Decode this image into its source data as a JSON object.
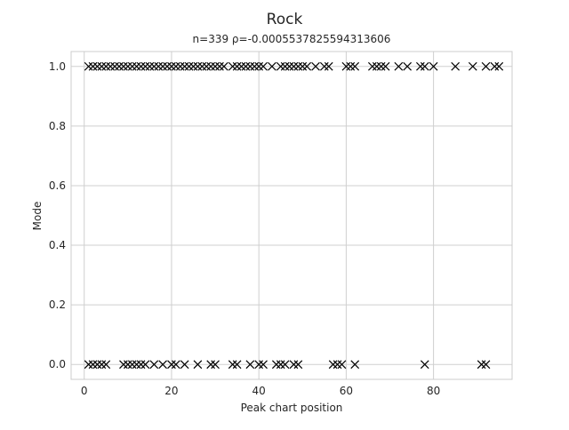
{
  "chart_data": {
    "type": "scatter",
    "title": "Rock",
    "subtitle": "n=339 ρ=-0.0005537825594313606",
    "xlabel": "Peak chart position",
    "ylabel": "Mode",
    "xlim": [
      -3,
      98
    ],
    "ylim": [
      -0.05,
      1.05
    ],
    "xticks": [
      0,
      20,
      40,
      60,
      80
    ],
    "yticks": [
      0.0,
      0.2,
      0.4,
      0.6,
      0.8,
      1.0
    ],
    "grid": true,
    "marker": "x",
    "colors": {
      "marker": "#000000",
      "grid": "#cfcfcf",
      "text": "#262626"
    },
    "series": [
      {
        "points": [
          {
            "x": 1,
            "y": 1.0
          },
          {
            "x": 2,
            "y": 1.0
          },
          {
            "x": 3,
            "y": 1.0
          },
          {
            "x": 4,
            "y": 1.0
          },
          {
            "x": 5,
            "y": 1.0
          },
          {
            "x": 6,
            "y": 1.0
          },
          {
            "x": 7,
            "y": 1.0
          },
          {
            "x": 8,
            "y": 1.0
          },
          {
            "x": 9,
            "y": 1.0
          },
          {
            "x": 10,
            "y": 1.0
          },
          {
            "x": 11,
            "y": 1.0
          },
          {
            "x": 12,
            "y": 1.0
          },
          {
            "x": 13,
            "y": 1.0
          },
          {
            "x": 14,
            "y": 1.0
          },
          {
            "x": 15,
            "y": 1.0
          },
          {
            "x": 16,
            "y": 1.0
          },
          {
            "x": 17,
            "y": 1.0
          },
          {
            "x": 18,
            "y": 1.0
          },
          {
            "x": 19,
            "y": 1.0
          },
          {
            "x": 20,
            "y": 1.0
          },
          {
            "x": 21,
            "y": 1.0
          },
          {
            "x": 22,
            "y": 1.0
          },
          {
            "x": 23,
            "y": 1.0
          },
          {
            "x": 24,
            "y": 1.0
          },
          {
            "x": 25,
            "y": 1.0
          },
          {
            "x": 26,
            "y": 1.0
          },
          {
            "x": 27,
            "y": 1.0
          },
          {
            "x": 28,
            "y": 1.0
          },
          {
            "x": 29,
            "y": 1.0
          },
          {
            "x": 30,
            "y": 1.0
          },
          {
            "x": 31,
            "y": 1.0
          },
          {
            "x": 32,
            "y": 1.0
          },
          {
            "x": 34,
            "y": 1.0
          },
          {
            "x": 35,
            "y": 1.0
          },
          {
            "x": 36,
            "y": 1.0
          },
          {
            "x": 37,
            "y": 1.0
          },
          {
            "x": 38,
            "y": 1.0
          },
          {
            "x": 39,
            "y": 1.0
          },
          {
            "x": 40,
            "y": 1.0
          },
          {
            "x": 41,
            "y": 1.0
          },
          {
            "x": 43,
            "y": 1.0
          },
          {
            "x": 45,
            "y": 1.0
          },
          {
            "x": 46,
            "y": 1.0
          },
          {
            "x": 47,
            "y": 1.0
          },
          {
            "x": 48,
            "y": 1.0
          },
          {
            "x": 49,
            "y": 1.0
          },
          {
            "x": 50,
            "y": 1.0
          },
          {
            "x": 51,
            "y": 1.0
          },
          {
            "x": 53,
            "y": 1.0
          },
          {
            "x": 55,
            "y": 1.0
          },
          {
            "x": 56,
            "y": 1.0
          },
          {
            "x": 60,
            "y": 1.0
          },
          {
            "x": 61,
            "y": 1.0
          },
          {
            "x": 62,
            "y": 1.0
          },
          {
            "x": 66,
            "y": 1.0
          },
          {
            "x": 67,
            "y": 1.0
          },
          {
            "x": 68,
            "y": 1.0
          },
          {
            "x": 69,
            "y": 1.0
          },
          {
            "x": 72,
            "y": 1.0
          },
          {
            "x": 74,
            "y": 1.0
          },
          {
            "x": 77,
            "y": 1.0
          },
          {
            "x": 78,
            "y": 1.0
          },
          {
            "x": 80,
            "y": 1.0
          },
          {
            "x": 85,
            "y": 1.0
          },
          {
            "x": 89,
            "y": 1.0
          },
          {
            "x": 92,
            "y": 1.0
          },
          {
            "x": 94,
            "y": 1.0
          },
          {
            "x": 95,
            "y": 1.0
          },
          {
            "x": 1,
            "y": 0.0
          },
          {
            "x": 2,
            "y": 0.0
          },
          {
            "x": 3,
            "y": 0.0
          },
          {
            "x": 4,
            "y": 0.0
          },
          {
            "x": 5,
            "y": 0.0
          },
          {
            "x": 9,
            "y": 0.0
          },
          {
            "x": 10,
            "y": 0.0
          },
          {
            "x": 11,
            "y": 0.0
          },
          {
            "x": 12,
            "y": 0.0
          },
          {
            "x": 13,
            "y": 0.0
          },
          {
            "x": 14,
            "y": 0.0
          },
          {
            "x": 16,
            "y": 0.0
          },
          {
            "x": 18,
            "y": 0.0
          },
          {
            "x": 20,
            "y": 0.0
          },
          {
            "x": 21,
            "y": 0.0
          },
          {
            "x": 23,
            "y": 0.0
          },
          {
            "x": 26,
            "y": 0.0
          },
          {
            "x": 29,
            "y": 0.0
          },
          {
            "x": 30,
            "y": 0.0
          },
          {
            "x": 34,
            "y": 0.0
          },
          {
            "x": 35,
            "y": 0.0
          },
          {
            "x": 38,
            "y": 0.0
          },
          {
            "x": 40,
            "y": 0.0
          },
          {
            "x": 41,
            "y": 0.0
          },
          {
            "x": 44,
            "y": 0.0
          },
          {
            "x": 45,
            "y": 0.0
          },
          {
            "x": 46,
            "y": 0.0
          },
          {
            "x": 48,
            "y": 0.0
          },
          {
            "x": 49,
            "y": 0.0
          },
          {
            "x": 57,
            "y": 0.0
          },
          {
            "x": 58,
            "y": 0.0
          },
          {
            "x": 59,
            "y": 0.0
          },
          {
            "x": 62,
            "y": 0.0
          },
          {
            "x": 78,
            "y": 0.0
          },
          {
            "x": 91,
            "y": 0.0
          },
          {
            "x": 92,
            "y": 0.0
          }
        ]
      }
    ]
  }
}
